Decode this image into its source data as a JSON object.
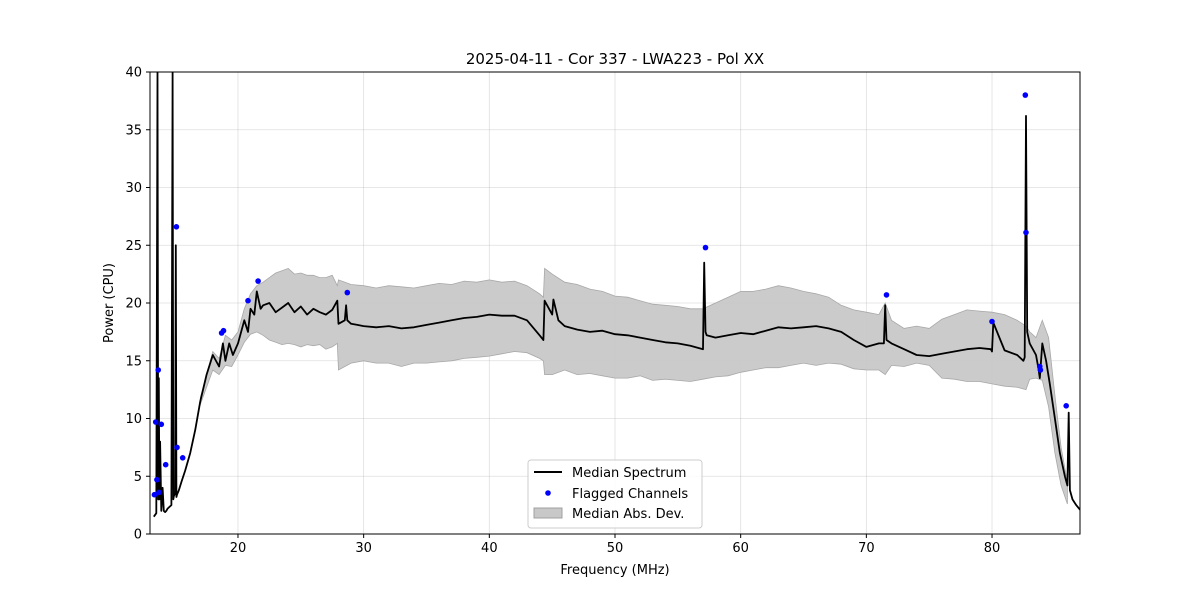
{
  "chart_data": {
    "type": "line",
    "title": "2025-04-11 - Cor 337 - LWA223 - Pol XX",
    "xlabel": "Frequency (MHz)",
    "ylabel": "Power (CPU)",
    "xlim": [
      13.0,
      87.0
    ],
    "ylim": [
      0,
      40
    ],
    "xticks": [
      20,
      30,
      40,
      50,
      60,
      70,
      80
    ],
    "yticks": [
      0,
      5,
      10,
      15,
      20,
      25,
      30,
      35,
      40
    ],
    "grid": true,
    "legend_position": "bottom-center",
    "legend": [
      "Median Spectrum",
      "Flagged Channels",
      "Median Abs. Dev."
    ],
    "series": [
      {
        "name": "Median Spectrum",
        "color": "#000000",
        "x": [
          13.3,
          13.5,
          13.6,
          13.65,
          13.7,
          13.75,
          13.8,
          13.9,
          14.0,
          14.1,
          14.2,
          14.3,
          14.4,
          14.5,
          14.7,
          14.8,
          14.85,
          14.9,
          15.0,
          15.05,
          15.1,
          15.15,
          15.3,
          15.5,
          15.8,
          16.2,
          16.6,
          17.0,
          17.5,
          18.0,
          18.5,
          18.8,
          19.0,
          19.3,
          19.6,
          20.0,
          20.5,
          20.8,
          21.0,
          21.3,
          21.5,
          21.8,
          22.0,
          22.5,
          23.0,
          23.5,
          24.0,
          24.5,
          25.0,
          25.5,
          26.0,
          26.5,
          27.0,
          27.5,
          27.9,
          28.0,
          28.5,
          28.6,
          28.7,
          29.0,
          29.5,
          30.0,
          31.0,
          32.0,
          33.0,
          34.0,
          35.0,
          36.0,
          37.0,
          38.0,
          39.0,
          40.0,
          41.0,
          42.0,
          43.0,
          44.0,
          44.3,
          44.4,
          45.0,
          45.1,
          45.5,
          46.0,
          47.0,
          48.0,
          49.0,
          50.0,
          51.0,
          52.0,
          53.0,
          54.0,
          55.0,
          56.0,
          57.0,
          57.1,
          57.2,
          57.3,
          58.0,
          59.0,
          60.0,
          61.0,
          62.0,
          63.0,
          64.0,
          65.0,
          66.0,
          67.0,
          68.0,
          69.0,
          70.0,
          71.0,
          71.4,
          71.5,
          71.6,
          72.0,
          73.0,
          74.0,
          75.0,
          76.0,
          77.0,
          78.0,
          79.0,
          79.9,
          80.0,
          80.1,
          81.0,
          82.0,
          82.5,
          82.6,
          82.7,
          82.8,
          83.0,
          83.5,
          83.7,
          83.8,
          84.0,
          84.3,
          84.6,
          85.0,
          85.4,
          85.8,
          86.0,
          86.1,
          86.2,
          86.4,
          86.7,
          87.0
        ],
        "values": [
          1.5,
          1.8,
          40,
          3,
          13.5,
          3,
          8,
          2,
          4,
          2,
          1.9,
          2,
          2.2,
          2.3,
          2.5,
          40,
          3,
          3.3,
          3.5,
          25,
          3.2,
          3.4,
          3.8,
          4.5,
          5.5,
          7,
          9,
          11.5,
          13.8,
          15.5,
          14.5,
          16.5,
          15,
          16.5,
          15.5,
          16.5,
          18.5,
          17.5,
          19.5,
          19,
          21,
          19.5,
          19.8,
          20,
          19.2,
          19.6,
          20,
          19.2,
          19.7,
          19,
          19.5,
          19.2,
          19,
          19.4,
          20.2,
          18.2,
          18.5,
          19.8,
          18.5,
          18.2,
          18.1,
          18,
          17.9,
          18,
          17.8,
          17.9,
          18.1,
          18.3,
          18.5,
          18.7,
          18.8,
          19,
          18.9,
          18.9,
          18.5,
          17.2,
          16.8,
          20.2,
          19,
          20.3,
          18.5,
          18,
          17.7,
          17.5,
          17.6,
          17.3,
          17.2,
          17,
          16.8,
          16.6,
          16.5,
          16.3,
          16,
          23.5,
          17.5,
          17.2,
          17,
          17.2,
          17.4,
          17.3,
          17.6,
          17.9,
          17.8,
          17.9,
          18,
          17.8,
          17.5,
          16.8,
          16.2,
          16.5,
          16.5,
          19.8,
          16.8,
          16.5,
          16,
          15.5,
          15.4,
          15.6,
          15.8,
          16,
          16.1,
          16,
          15.8,
          18.3,
          15.9,
          15.5,
          15,
          15.3,
          36.2,
          17.5,
          16.5,
          15.5,
          14.3,
          13.5,
          16.5,
          15,
          13,
          10,
          7,
          5,
          4.2,
          10.5,
          3.8,
          3,
          2.5,
          2.1
        ]
      },
      {
        "name": "Flagged Channels",
        "type": "scatter",
        "color": "#0000ff",
        "x": [
          13.35,
          13.45,
          13.55,
          13.65,
          13.72,
          13.9,
          14.25,
          15.1,
          15.15,
          15.6,
          18.7,
          18.85,
          20.8,
          21.6,
          28.7,
          57.2,
          71.6,
          80.0,
          82.65,
          82.7,
          83.8,
          83.85,
          85.9
        ],
        "values": [
          3.4,
          9.7,
          4.7,
          14.2,
          3.6,
          9.5,
          6.0,
          26.6,
          7.5,
          6.6,
          17.4,
          17.6,
          20.2,
          21.9,
          20.9,
          24.8,
          20.7,
          18.4,
          38.0,
          26.1,
          14.5,
          14.2,
          11.1
        ]
      }
    ],
    "band": {
      "name": "Median Abs. Dev.",
      "color": "#c8c8c8",
      "x": [
        17.0,
        18.0,
        18.5,
        19.0,
        19.5,
        20.0,
        20.5,
        21.0,
        21.5,
        22.0,
        22.5,
        23.0,
        23.5,
        24.0,
        24.5,
        25.0,
        25.5,
        26.0,
        26.5,
        27.0,
        27.5,
        27.9,
        28.0,
        29.0,
        30.0,
        31.0,
        32.0,
        33.0,
        34.0,
        35.0,
        36.0,
        37.0,
        38.0,
        39.0,
        40.0,
        41.0,
        42.0,
        43.0,
        44.0,
        44.3,
        44.4,
        45.0,
        46.0,
        47.0,
        48.0,
        49.0,
        50.0,
        51.0,
        52.0,
        53.0,
        54.0,
        55.0,
        56.0,
        57.0,
        58.0,
        59.0,
        60.0,
        61.0,
        62.0,
        63.0,
        64.0,
        65.0,
        66.0,
        67.0,
        68.0,
        69.0,
        70.0,
        71.0,
        71.5,
        72.0,
        73.0,
        74.0,
        75.0,
        76.0,
        77.0,
        78.0,
        79.0,
        80.0,
        81.0,
        82.0,
        82.7,
        83.0,
        83.5,
        84.0,
        84.5,
        85.0,
        85.5,
        86.0
      ],
      "upper": [
        11.8,
        15.8,
        15.2,
        17.2,
        16.8,
        17.5,
        19.5,
        20.8,
        21.5,
        21.8,
        22.2,
        22.6,
        22.8,
        23,
        22.5,
        22.6,
        22.4,
        22.4,
        22.2,
        22.2,
        22.4,
        21.5,
        22,
        21.6,
        21.5,
        21.3,
        21.5,
        21.4,
        21.3,
        21.5,
        21.7,
        21.6,
        21.9,
        21.8,
        22,
        21.8,
        21.9,
        21.5,
        20.8,
        20.5,
        23,
        22.5,
        21.8,
        21.6,
        21.2,
        21,
        20.6,
        20.5,
        20.2,
        19.9,
        19.8,
        19.7,
        19.5,
        19.5,
        20,
        20.5,
        21,
        21,
        21.2,
        21.5,
        21.3,
        21,
        20.8,
        20.5,
        19.8,
        19.4,
        19.2,
        19,
        20,
        18.5,
        17.8,
        18,
        17.8,
        18.6,
        19,
        19.4,
        19.3,
        19.2,
        19,
        18.5,
        18,
        17.5,
        17,
        18.5,
        17,
        12,
        7.5,
        4.5
      ],
      "lower": [
        11.2,
        14.2,
        13.8,
        14.6,
        14.5,
        15.5,
        16.6,
        17.3,
        17.5,
        17.2,
        16.8,
        16.6,
        16.4,
        16.5,
        16.4,
        16.2,
        16.4,
        16.3,
        16.4,
        16,
        16.2,
        16.5,
        14.2,
        14.8,
        15,
        14.8,
        14.8,
        14.5,
        14.8,
        14.8,
        14.9,
        15,
        15.2,
        15.3,
        15.4,
        15.6,
        15.8,
        15.7,
        15.2,
        15,
        13.8,
        13.8,
        14.2,
        13.8,
        13.9,
        13.7,
        13.5,
        13.5,
        13.7,
        13.3,
        13.4,
        13.3,
        13.2,
        13.4,
        13.6,
        13.7,
        14,
        14.2,
        14.4,
        14.4,
        14.6,
        14.8,
        14.6,
        14.8,
        14.7,
        14.3,
        14.2,
        14.2,
        13.8,
        14.6,
        14.5,
        14.8,
        14.6,
        13.5,
        13.4,
        13.2,
        13.2,
        13,
        12.8,
        12.7,
        12.5,
        13.4,
        13.5,
        13.3,
        11,
        7,
        4.2,
        2.6
      ]
    }
  }
}
